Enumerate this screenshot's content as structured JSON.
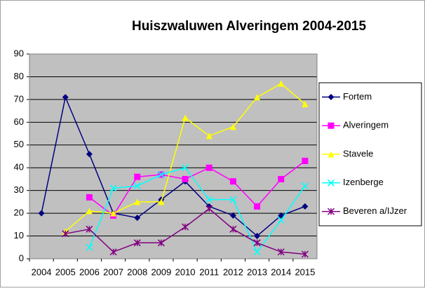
{
  "chart_data": {
    "type": "line",
    "title": "Huiszwaluwen Alveringem 2004-2015",
    "categories": [
      "2004",
      "2005",
      "2006",
      "2007",
      "2008",
      "2009",
      "2010",
      "2011",
      "2012",
      "2013",
      "2014",
      "2015"
    ],
    "ylim": [
      0,
      90
    ],
    "yticks": [
      0,
      10,
      20,
      30,
      40,
      50,
      60,
      70,
      80,
      90
    ],
    "grid": true,
    "legend": "right",
    "series": [
      {
        "name": "Fortem",
        "color": "#000080",
        "marker": "diamond",
        "values": [
          20,
          71,
          46,
          20,
          18,
          26,
          34,
          23,
          19,
          10,
          19,
          23
        ]
      },
      {
        "name": "Alveringem",
        "color": "#ff00ff",
        "marker": "square",
        "values": [
          null,
          null,
          27,
          19,
          36,
          37,
          35,
          40,
          34,
          23,
          35,
          43
        ]
      },
      {
        "name": "Stavele",
        "color": "#ffff00",
        "marker": "triangle",
        "values": [
          null,
          12,
          21,
          20,
          25,
          25,
          62,
          54,
          58,
          71,
          77,
          68
        ]
      },
      {
        "name": "Izenberge",
        "color": "#00ffff",
        "marker": "x",
        "values": [
          null,
          null,
          5,
          31,
          32,
          37,
          40,
          26,
          26,
          3,
          17,
          32
        ]
      },
      {
        "name": "Beveren a/IJzer",
        "color": "#800080",
        "marker": "star",
        "values": [
          null,
          11,
          13,
          3,
          7,
          7,
          14,
          22,
          13,
          7,
          3,
          2
        ]
      }
    ]
  }
}
